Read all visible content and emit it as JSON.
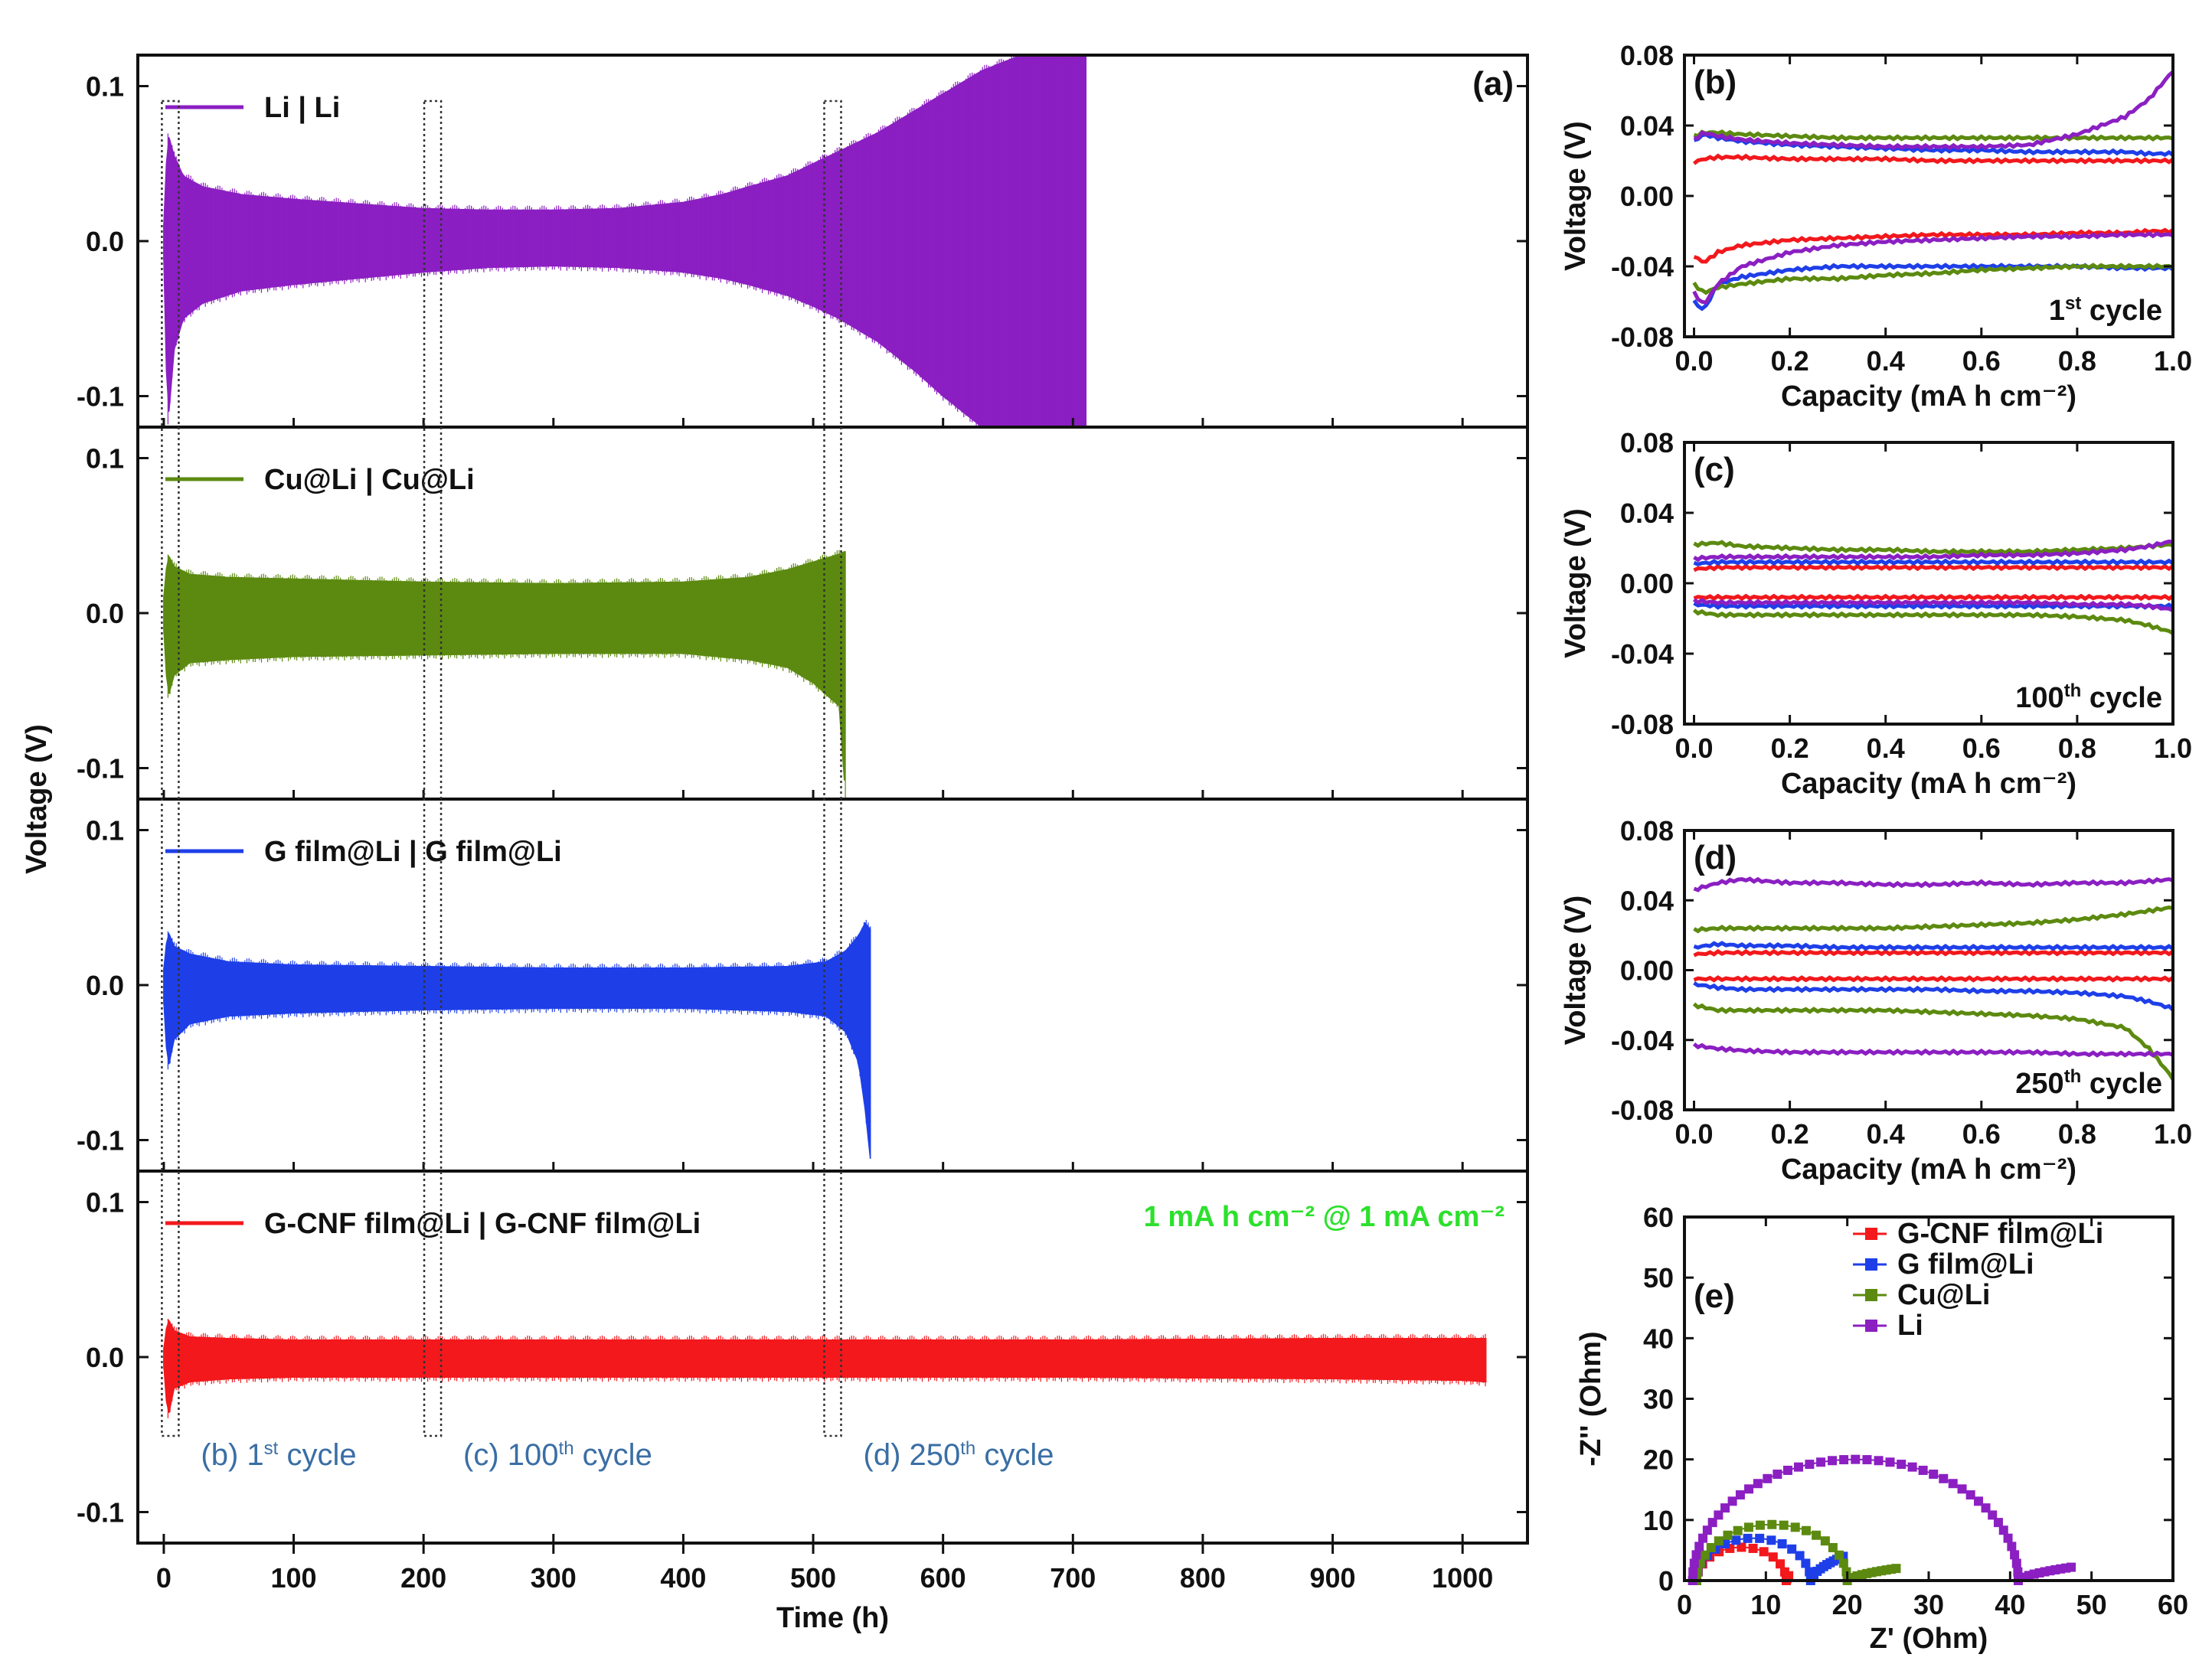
{
  "colors": {
    "li": "#8B1FC2",
    "cu": "#5C8A10",
    "g": "#1E3FE8",
    "gcnf": "#F2181C",
    "cond": "#2DE02D",
    "boxlab": "#3A6EA5",
    "legend_green": "#6E9A1A"
  },
  "chart_data": [
    {
      "id": "a",
      "type": "line",
      "panel_label": "(a)",
      "xlabel": "Time (h)",
      "ylabel": "Voltage (V)",
      "xlim": [
        -20,
        1050
      ],
      "ylim": [
        -0.12,
        0.12
      ],
      "xticks": [
        0,
        100,
        200,
        300,
        400,
        500,
        600,
        700,
        800,
        900,
        1000
      ],
      "yticks": [
        -0.1,
        0.0,
        0.1
      ],
      "ytick_labels": [
        "-0.1",
        "0.0",
        "0.1"
      ],
      "condition": "1 mA h cm⁻² @ 1 mA cm⁻²",
      "subplots": [
        {
          "name": "Li | Li",
          "color_key": "li",
          "end_h": 710,
          "envelope_t": [
            0,
            3,
            8,
            15,
            30,
            60,
            100,
            150,
            200,
            250,
            300,
            350,
            400,
            430,
            450,
            480,
            500,
            520,
            550,
            580,
            600,
            630,
            660,
            690,
            710
          ],
          "envelope_v": [
            0.01,
            0.07,
            0.055,
            0.042,
            0.035,
            0.03,
            0.027,
            0.024,
            0.021,
            0.02,
            0.02,
            0.021,
            0.025,
            0.03,
            0.035,
            0.042,
            0.05,
            0.058,
            0.07,
            0.085,
            0.095,
            0.11,
            0.12,
            0.12,
            0.12
          ],
          "envelope_lo": [
            -0.01,
            -0.12,
            -0.07,
            -0.05,
            -0.04,
            -0.032,
            -0.028,
            -0.024,
            -0.02,
            -0.017,
            -0.016,
            -0.017,
            -0.02,
            -0.024,
            -0.028,
            -0.035,
            -0.042,
            -0.05,
            -0.065,
            -0.085,
            -0.1,
            -0.12,
            -0.12,
            -0.12,
            -0.12
          ]
        },
        {
          "name": "Cu@Li | Cu@Li",
          "color_key": "cu",
          "end_h": 525,
          "envelope_t": [
            0,
            3,
            8,
            20,
            50,
            100,
            200,
            300,
            400,
            450,
            480,
            500,
            520,
            525
          ],
          "envelope_v": [
            0.01,
            0.038,
            0.03,
            0.025,
            0.023,
            0.022,
            0.02,
            0.019,
            0.02,
            0.023,
            0.028,
            0.033,
            0.038,
            0.04
          ],
          "envelope_lo": [
            -0.01,
            -0.055,
            -0.04,
            -0.032,
            -0.03,
            -0.028,
            -0.027,
            -0.026,
            -0.026,
            -0.03,
            -0.035,
            -0.045,
            -0.06,
            -0.12
          ]
        },
        {
          "name": "G film@Li | G film@Li",
          "color_key": "g",
          "end_h": 545,
          "envelope_t": [
            0,
            3,
            8,
            20,
            50,
            100,
            200,
            300,
            400,
            480,
            510,
            525,
            535,
            540,
            545
          ],
          "envelope_v": [
            0.01,
            0.035,
            0.025,
            0.02,
            0.015,
            0.013,
            0.012,
            0.011,
            0.011,
            0.012,
            0.015,
            0.022,
            0.032,
            0.04,
            0.035
          ],
          "envelope_lo": [
            -0.01,
            -0.055,
            -0.035,
            -0.025,
            -0.02,
            -0.018,
            -0.016,
            -0.015,
            -0.015,
            -0.017,
            -0.02,
            -0.03,
            -0.05,
            -0.08,
            -0.12
          ]
        },
        {
          "name": "G-CNF film@Li | G-CNF film@Li",
          "color_key": "gcnf",
          "end_h": 1018,
          "envelope_t": [
            0,
            3,
            8,
            20,
            50,
            100,
            300,
            500,
            700,
            900,
            1000,
            1018
          ],
          "envelope_v": [
            0.005,
            0.025,
            0.017,
            0.013,
            0.012,
            0.011,
            0.011,
            0.011,
            0.011,
            0.012,
            0.012,
            0.012
          ],
          "envelope_lo": [
            -0.005,
            -0.04,
            -0.02,
            -0.016,
            -0.014,
            -0.013,
            -0.013,
            -0.013,
            -0.013,
            -0.014,
            -0.015,
            -0.016
          ]
        }
      ],
      "annotations": [
        {
          "label_prefix": "(b) 1",
          "sup": "st",
          "label_suffix": " cycle",
          "x_center": 5
        },
        {
          "label_prefix": "(c) 100",
          "sup": "th",
          "label_suffix": " cycle",
          "x_center": 207
        },
        {
          "label_prefix": "(d) 250",
          "sup": "th",
          "label_suffix": " cycle",
          "x_center": 515
        }
      ]
    },
    {
      "id": "b",
      "type": "line",
      "panel_label": "(b)",
      "cycle_prefix": "1",
      "cycle_sup": "st",
      "cycle_suffix": " cycle",
      "xlabel": "Capacity (mA h cm⁻²)",
      "ylabel": "Voltage (V)",
      "xlim": [
        -0.02,
        1.0
      ],
      "ylim": [
        -0.08,
        0.08
      ],
      "xticks": [
        0.0,
        0.2,
        0.4,
        0.6,
        0.8,
        1.0
      ],
      "xtick_labels": [
        "0.0",
        "0.2",
        "0.4",
        "0.6",
        "0.8",
        "1.0"
      ],
      "yticks": [
        -0.08,
        -0.04,
        0.0,
        0.04,
        0.08
      ],
      "ytick_labels": [
        "-0.08",
        "-0.04",
        "0.00",
        "0.04",
        "0.08"
      ],
      "x": [
        0.0,
        0.02,
        0.05,
        0.1,
        0.2,
        0.3,
        0.4,
        0.5,
        0.6,
        0.7,
        0.8,
        0.9,
        0.95,
        1.0
      ],
      "series": [
        {
          "color_key": "gcnf",
          "charge": [
            0.019,
            0.021,
            0.022,
            0.022,
            0.021,
            0.021,
            0.021,
            0.02,
            0.02,
            0.02,
            0.02,
            0.02,
            0.02,
            0.02
          ],
          "discharge": [
            -0.034,
            -0.038,
            -0.032,
            -0.028,
            -0.025,
            -0.024,
            -0.023,
            -0.022,
            -0.022,
            -0.022,
            -0.021,
            -0.021,
            -0.02,
            -0.02
          ]
        },
        {
          "color_key": "g",
          "charge": [
            0.031,
            0.035,
            0.033,
            0.031,
            0.029,
            0.028,
            0.027,
            0.026,
            0.026,
            0.025,
            0.025,
            0.025,
            0.024,
            0.024
          ],
          "discharge": [
            -0.06,
            -0.065,
            -0.05,
            -0.046,
            -0.042,
            -0.04,
            -0.04,
            -0.04,
            -0.04,
            -0.04,
            -0.04,
            -0.041,
            -0.041,
            -0.041
          ]
        },
        {
          "color_key": "cu",
          "charge": [
            0.034,
            0.036,
            0.036,
            0.035,
            0.034,
            0.033,
            0.033,
            0.033,
            0.033,
            0.033,
            0.033,
            0.033,
            0.033,
            0.033
          ],
          "discharge": [
            -0.05,
            -0.055,
            -0.052,
            -0.05,
            -0.047,
            -0.047,
            -0.045,
            -0.044,
            -0.042,
            -0.041,
            -0.04,
            -0.04,
            -0.04,
            -0.04
          ]
        },
        {
          "color_key": "li",
          "charge": [
            0.032,
            0.036,
            0.034,
            0.032,
            0.03,
            0.029,
            0.028,
            0.028,
            0.028,
            0.029,
            0.035,
            0.045,
            0.055,
            0.071
          ],
          "discharge": [
            -0.055,
            -0.062,
            -0.05,
            -0.04,
            -0.032,
            -0.028,
            -0.026,
            -0.025,
            -0.024,
            -0.023,
            -0.023,
            -0.022,
            -0.022,
            -0.022
          ]
        }
      ]
    },
    {
      "id": "c",
      "type": "line",
      "panel_label": "(c)",
      "cycle_prefix": "100",
      "cycle_sup": "th",
      "cycle_suffix": " cycle",
      "xlabel": "Capacity (mA h cm⁻²)",
      "ylabel": "Voltage (V)",
      "xlim": [
        -0.02,
        1.0
      ],
      "ylim": [
        -0.08,
        0.08
      ],
      "xticks": [
        0.0,
        0.2,
        0.4,
        0.6,
        0.8,
        1.0
      ],
      "xtick_labels": [
        "0.0",
        "0.2",
        "0.4",
        "0.6",
        "0.8",
        "1.0"
      ],
      "yticks": [
        -0.08,
        -0.04,
        0.0,
        0.04,
        0.08
      ],
      "ytick_labels": [
        "-0.08",
        "-0.04",
        "0.00",
        "0.04",
        "0.08"
      ],
      "x": [
        0.0,
        0.05,
        0.1,
        0.2,
        0.3,
        0.4,
        0.5,
        0.6,
        0.7,
        0.8,
        0.9,
        0.95,
        1.0
      ],
      "series": [
        {
          "color_key": "gcnf",
          "charge": [
            0.008,
            0.009,
            0.009,
            0.009,
            0.009,
            0.009,
            0.009,
            0.009,
            0.009,
            0.009,
            0.009,
            0.009,
            0.009
          ],
          "discharge": [
            -0.008,
            -0.008,
            -0.008,
            -0.008,
            -0.008,
            -0.008,
            -0.008,
            -0.008,
            -0.008,
            -0.008,
            -0.008,
            -0.008,
            -0.008
          ]
        },
        {
          "color_key": "g",
          "charge": [
            0.011,
            0.012,
            0.012,
            0.012,
            0.012,
            0.012,
            0.012,
            0.012,
            0.012,
            0.012,
            0.012,
            0.012,
            0.012
          ],
          "discharge": [
            -0.012,
            -0.013,
            -0.013,
            -0.013,
            -0.013,
            -0.013,
            -0.013,
            -0.013,
            -0.013,
            -0.013,
            -0.013,
            -0.013,
            -0.013
          ]
        },
        {
          "color_key": "cu",
          "charge": [
            0.022,
            0.023,
            0.021,
            0.02,
            0.019,
            0.019,
            0.018,
            0.018,
            0.018,
            0.019,
            0.02,
            0.021,
            0.022
          ],
          "discharge": [
            -0.016,
            -0.018,
            -0.018,
            -0.018,
            -0.018,
            -0.018,
            -0.018,
            -0.018,
            -0.018,
            -0.019,
            -0.021,
            -0.024,
            -0.028
          ]
        },
        {
          "color_key": "li",
          "charge": [
            0.014,
            0.015,
            0.015,
            0.015,
            0.015,
            0.015,
            0.015,
            0.016,
            0.016,
            0.017,
            0.019,
            0.021,
            0.024
          ],
          "discharge": [
            -0.01,
            -0.011,
            -0.011,
            -0.011,
            -0.011,
            -0.011,
            -0.011,
            -0.011,
            -0.011,
            -0.012,
            -0.012,
            -0.013,
            -0.015
          ]
        }
      ]
    },
    {
      "id": "d",
      "type": "line",
      "panel_label": "(d)",
      "cycle_prefix": "250",
      "cycle_sup": "th",
      "cycle_suffix": " cycle",
      "xlabel": "Capacity (mA h cm⁻²)",
      "ylabel": "Voltage (V)",
      "xlim": [
        -0.02,
        1.0
      ],
      "ylim": [
        -0.08,
        0.08
      ],
      "xticks": [
        0.0,
        0.2,
        0.4,
        0.6,
        0.8,
        1.0
      ],
      "xtick_labels": [
        "0.0",
        "0.2",
        "0.4",
        "0.6",
        "0.8",
        "1.0"
      ],
      "yticks": [
        -0.08,
        -0.04,
        0.0,
        0.04,
        0.08
      ],
      "ytick_labels": [
        "-0.08",
        "-0.04",
        "0.00",
        "0.04",
        "0.08"
      ],
      "x": [
        0.0,
        0.05,
        0.1,
        0.2,
        0.3,
        0.4,
        0.5,
        0.6,
        0.7,
        0.8,
        0.9,
        0.95,
        1.0
      ],
      "series": [
        {
          "color_key": "gcnf",
          "charge": [
            0.009,
            0.01,
            0.01,
            0.01,
            0.01,
            0.01,
            0.01,
            0.01,
            0.01,
            0.01,
            0.01,
            0.01,
            0.01
          ],
          "discharge": [
            -0.005,
            -0.005,
            -0.005,
            -0.005,
            -0.005,
            -0.005,
            -0.005,
            -0.005,
            -0.005,
            -0.005,
            -0.005,
            -0.005,
            -0.005
          ]
        },
        {
          "color_key": "g",
          "charge": [
            0.013,
            0.015,
            0.014,
            0.014,
            0.013,
            0.013,
            0.013,
            0.013,
            0.013,
            0.013,
            0.013,
            0.013,
            0.013
          ],
          "discharge": [
            -0.008,
            -0.01,
            -0.011,
            -0.011,
            -0.011,
            -0.011,
            -0.011,
            -0.012,
            -0.012,
            -0.013,
            -0.015,
            -0.018,
            -0.022
          ]
        },
        {
          "color_key": "cu",
          "charge": [
            0.023,
            0.024,
            0.024,
            0.024,
            0.024,
            0.024,
            0.025,
            0.026,
            0.027,
            0.029,
            0.032,
            0.034,
            0.036
          ],
          "discharge": [
            -0.02,
            -0.023,
            -0.023,
            -0.023,
            -0.023,
            -0.023,
            -0.024,
            -0.025,
            -0.026,
            -0.028,
            -0.033,
            -0.045,
            -0.062
          ]
        },
        {
          "color_key": "li",
          "charge": [
            0.046,
            0.05,
            0.052,
            0.05,
            0.05,
            0.049,
            0.049,
            0.05,
            0.049,
            0.05,
            0.05,
            0.051,
            0.052
          ],
          "discharge": [
            -0.043,
            -0.045,
            -0.046,
            -0.047,
            -0.047,
            -0.047,
            -0.047,
            -0.047,
            -0.047,
            -0.048,
            -0.048,
            -0.048,
            -0.048
          ]
        }
      ]
    },
    {
      "id": "e",
      "type": "scatter",
      "panel_label": "(e)",
      "xlabel": "Z' (Ohm)",
      "ylabel": "-Z'' (Ohm)",
      "xlim": [
        0,
        60
      ],
      "ylim": [
        0,
        60
      ],
      "xticks": [
        0,
        10,
        20,
        30,
        40,
        50,
        60
      ],
      "yticks": [
        0,
        10,
        20,
        30,
        40,
        50,
        60
      ],
      "legend_position": "top-right",
      "series": [
        {
          "name": "G-CNF film@Li",
          "color_key": "gcnf",
          "r0": 1.5,
          "r1": 12.5,
          "tail_end": 12.8,
          "tail_h": 0.8
        },
        {
          "name": "G film@Li",
          "color_key": "g",
          "r0": 1.5,
          "r1": 15.5,
          "tail_end": 19.5,
          "tail_h": 4.0
        },
        {
          "name": "Cu@Li",
          "color_key": "cu",
          "r0": 1.5,
          "r1": 20.0,
          "tail_end": 26.0,
          "tail_h": 2.0
        },
        {
          "name": "Li",
          "color_key": "li",
          "r0": 1.0,
          "r1": 41.0,
          "tail_end": 47.5,
          "tail_h": 2.2
        }
      ]
    }
  ]
}
